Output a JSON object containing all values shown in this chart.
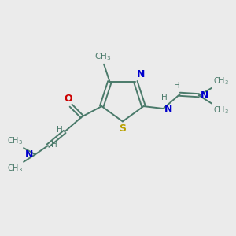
{
  "bg_color": "#ebebeb",
  "bond_color": "#4a7a6a",
  "N_color": "#0000cc",
  "S_color": "#b8a000",
  "O_color": "#cc0000",
  "H_color": "#4a7a6a",
  "figsize": [
    3.0,
    3.0
  ],
  "dpi": 100,
  "xlim": [
    0,
    10
  ],
  "ylim": [
    0,
    10
  ],
  "lw": 1.4,
  "fs": 9,
  "fs_small": 7.5
}
